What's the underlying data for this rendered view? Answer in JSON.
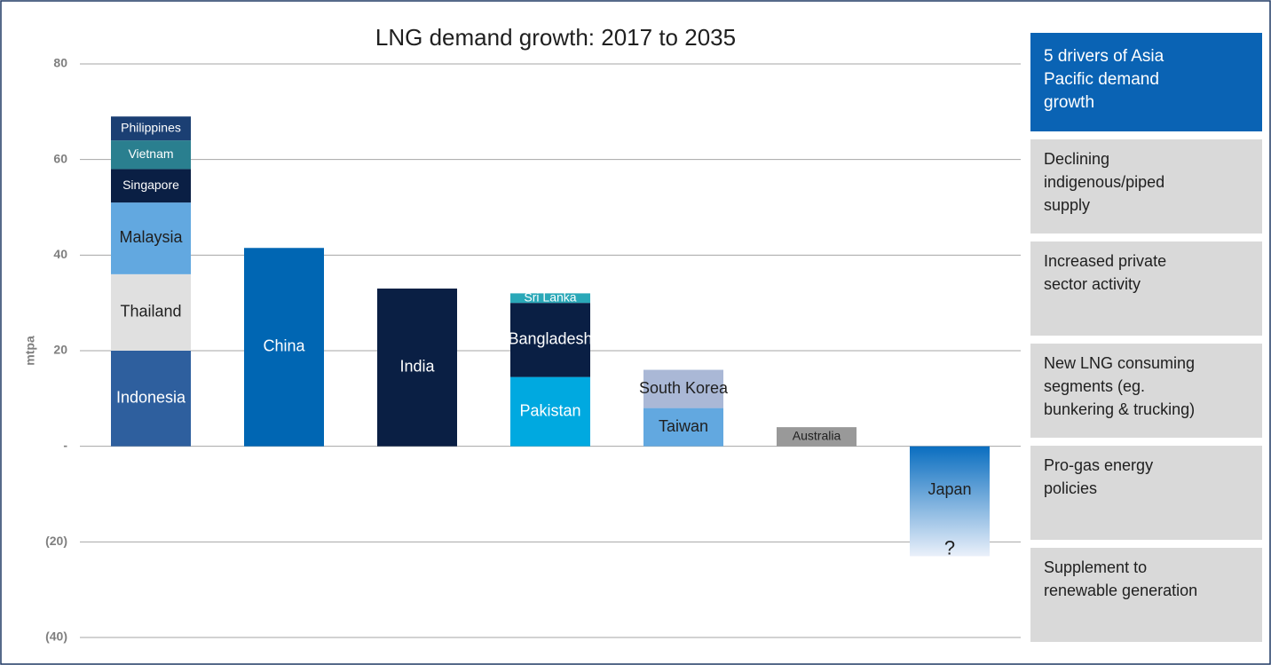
{
  "chart_data": {
    "type": "stacked_bar",
    "title": "LNG demand growth:  2017 to 2035",
    "y_label": "mtpa",
    "ylim": [
      -40,
      80
    ],
    "yticks": [
      {
        "value": -40,
        "label": "(40)"
      },
      {
        "value": -20,
        "label": "(20)"
      },
      {
        "value": 0,
        "label": "-"
      },
      20,
      40,
      60,
      80
    ],
    "grid": true,
    "stacks": [
      [
        {
          "name": "Indonesia",
          "value": 20,
          "color": "#2e5f9e"
        },
        {
          "name": "Thailand",
          "value": 16,
          "color": "#e0e0e0"
        },
        {
          "name": "Malaysia",
          "value": 15,
          "color": "#62a8e0"
        },
        {
          "name": "Singapore",
          "value": 7,
          "color": "#0a1f44"
        },
        {
          "name": "Vietnam",
          "value": 6,
          "color": "#2a7f8f"
        },
        {
          "name": "Philippines",
          "value": 5,
          "color": "#1b3f73"
        }
      ],
      [
        {
          "name": "China",
          "value": 41.5,
          "color": "#0066b3"
        }
      ],
      [
        {
          "name": "India",
          "value": 33,
          "color": "#0a1f44"
        }
      ],
      [
        {
          "name": "Pakistan",
          "value": 14.5,
          "color": "#00a9e0"
        },
        {
          "name": "Bangladesh",
          "value": 15.5,
          "color": "#0a1f44"
        },
        {
          "name": "Sri Lanka",
          "value": 2,
          "color": "#2aa8b8"
        }
      ],
      [
        {
          "name": "Taiwan",
          "value": 8,
          "color": "#62a8e0"
        },
        {
          "name": "South Korea",
          "value": 8,
          "color": "#aab8d6"
        }
      ],
      [
        {
          "name": "Australia",
          "value": 4,
          "color": "#999999"
        }
      ],
      [
        {
          "name": "Japan",
          "value": -23,
          "color": "#0a6ec0",
          "gradient_to": "#eaf0fa",
          "annotation": "?"
        }
      ]
    ]
  },
  "panel": {
    "title": "5 drivers of Asia Pacific demand growth",
    "items": [
      "Declining indigenous/piped supply",
      "Increased private sector activity",
      "New LNG consuming segments (eg. bunkering & trucking)",
      "Pro-gas energy policies",
      "Supplement to renewable generation"
    ]
  }
}
